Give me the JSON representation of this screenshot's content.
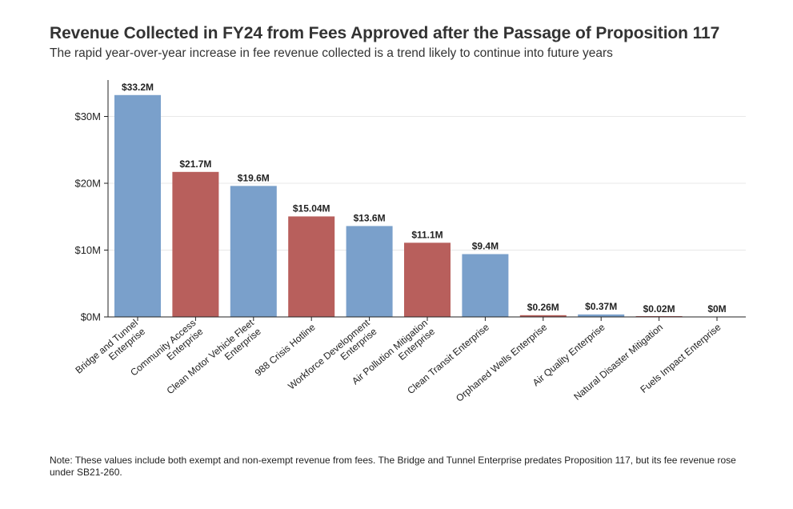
{
  "title": "Revenue Collected in FY24 from Fees Approved after the Passage of Proposition 117",
  "subtitle": "The rapid year-over-year increase in fee revenue collected is a trend likely to continue into future years",
  "note": "Note: These values include both exempt and non-exempt revenue from fees. The Bridge and Tunnel Enterprise predates Proposition 117, but its fee revenue rose under SB21-260.",
  "colors": {
    "blue": "#7aa0cb",
    "red": "#b85f5c",
    "axis": "#222222",
    "grid": "#e8e8e8"
  },
  "chart_data": {
    "type": "bar",
    "title": "Revenue Collected in FY24 from Fees Approved after the Passage of Proposition 117",
    "subtitle": "The rapid year-over-year increase in fee revenue collected is a trend likely to continue into future years",
    "xlabel": "",
    "ylabel": "",
    "ylim": [
      0,
      35
    ],
    "yticks": [
      0,
      10,
      20,
      30
    ],
    "ytick_labels": [
      "$0M",
      "$10M",
      "$20M",
      "$30M"
    ],
    "grid": true,
    "categories": [
      "Bridge and Tunnel Enterprise",
      "Community Access Enterprise",
      "Clean Motor Vehicle Fleet Enterprise",
      "988 Crisis Hotline",
      "Workforce Development Enterprise",
      "Air Pollution Mitigation Enterprise",
      "Clean Transit Enterprise",
      "Orphaned Wells Enterprise",
      "Air Quality Enterprise",
      "Natural Disaster Mitigation",
      "Fuels Impact Enterprise"
    ],
    "category_lines": [
      [
        "Bridge and Tunnel",
        "Enterprise"
      ],
      [
        "Community Access",
        "Enterprise"
      ],
      [
        "Clean Motor Vehicle Fleet",
        "Enterprise"
      ],
      [
        "988 Crisis Hotline"
      ],
      [
        "Workforce Development",
        "Enterprise"
      ],
      [
        "Air Pollution Mitigation",
        "Enterprise"
      ],
      [
        "Clean Transit Enterprise"
      ],
      [
        "Orphaned Wells Enterprise"
      ],
      [
        "Air Quality Enterprise"
      ],
      [
        "Natural Disaster Mitigation"
      ],
      [
        "Fuels Impact Enterprise"
      ]
    ],
    "values": [
      33.2,
      21.7,
      19.6,
      15.04,
      13.6,
      11.1,
      9.4,
      0.26,
      0.37,
      0.02,
      0
    ],
    "value_labels": [
      "$33.2M",
      "$21.7M",
      "$19.6M",
      "$15.04M",
      "$13.6M",
      "$11.1M",
      "$9.4M",
      "$0.26M",
      "$0.37M",
      "$0.02M",
      "$0M"
    ],
    "bar_colors": [
      "#7aa0cb",
      "#b85f5c",
      "#7aa0cb",
      "#b85f5c",
      "#7aa0cb",
      "#b85f5c",
      "#7aa0cb",
      "#b85f5c",
      "#7aa0cb",
      "#b85f5c",
      "#7aa0cb"
    ]
  }
}
